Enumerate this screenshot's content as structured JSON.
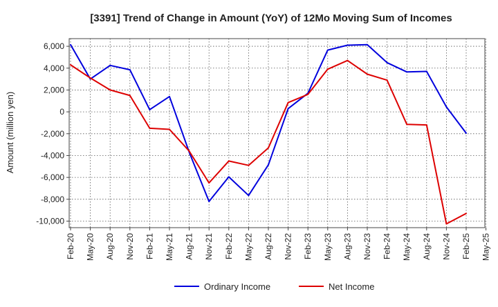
{
  "chart_data": {
    "type": "line",
    "title": "[3391]  Trend of Change in Amount (YoY) of 12Mo Moving Sum of Incomes",
    "xlabel": "",
    "ylabel": "Amount (million yen)",
    "ylim": [
      -10600,
      6700
    ],
    "yticks": [
      -10000,
      -8000,
      -6000,
      -4000,
      -2000,
      0,
      2000,
      4000,
      6000
    ],
    "ytick_labels": [
      "-10,000",
      "-8,000",
      "-6,000",
      "-4,000",
      "-2,000",
      "0",
      "2,000",
      "4,000",
      "6,000"
    ],
    "x": [
      "Feb-20",
      "May-20",
      "Aug-20",
      "Nov-20",
      "Feb-21",
      "May-21",
      "Aug-21",
      "Nov-21",
      "Feb-22",
      "May-22",
      "Aug-22",
      "Nov-22",
      "Feb-23",
      "May-23",
      "Aug-23",
      "Nov-23",
      "Feb-24",
      "May-24",
      "Aug-24",
      "Nov-24",
      "Feb-25"
    ],
    "xtick_labels": [
      "Feb-20",
      "May-20",
      "Aug-20",
      "Nov-20",
      "Feb-21",
      "May-21",
      "Aug-21",
      "Nov-21",
      "Feb-22",
      "May-22",
      "Aug-22",
      "Nov-22",
      "Feb-23",
      "May-23",
      "Aug-23",
      "Nov-23",
      "Feb-24",
      "May-24",
      "Aug-24",
      "Nov-24",
      "Feb-25",
      "May-25"
    ],
    "grid": true,
    "legend_position": "bottom-center",
    "series": [
      {
        "name": "Ordinary Income",
        "color": "#0000dd",
        "values": [
          6150,
          3000,
          4250,
          3850,
          200,
          1400,
          -3700,
          -8200,
          -5950,
          -7650,
          -4850,
          300,
          1700,
          5650,
          6100,
          6150,
          4500,
          3650,
          3700,
          450,
          -1950
        ]
      },
      {
        "name": "Net Income",
        "color": "#dd0000",
        "values": [
          4300,
          3100,
          2000,
          1500,
          -1500,
          -1600,
          -3600,
          -6500,
          -4500,
          -4900,
          -3300,
          850,
          1600,
          3900,
          4700,
          3450,
          2900,
          -1150,
          -1200,
          -10250,
          -9300
        ]
      }
    ]
  }
}
